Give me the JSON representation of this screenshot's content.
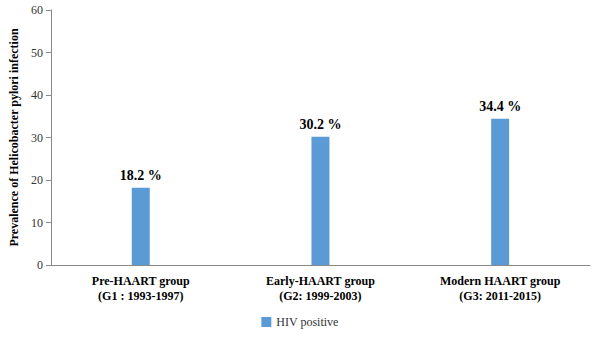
{
  "chart_data": {
    "type": "bar",
    "categories": [
      "Pre-HAART group\n(G1 : 1993-1997)",
      "Early-HAART group\n(G2: 1999-2003)",
      "Modern HAART group\n(G3: 2011-2015)"
    ],
    "series": [
      {
        "name": "HIV positive",
        "color": "#5b9bd5",
        "values": [
          18.2,
          30.2,
          34.4
        ],
        "value_labels": [
          "18.2 %",
          "30.2 %",
          "34.4 %"
        ]
      }
    ],
    "y_label": "Prevalence of Helicobacter pylori infection",
    "ylim": [
      0,
      60
    ],
    "yticks": [
      0,
      10,
      20,
      30,
      40,
      50,
      60
    ],
    "grid": false,
    "legend": "bottom",
    "data_labels": true
  }
}
